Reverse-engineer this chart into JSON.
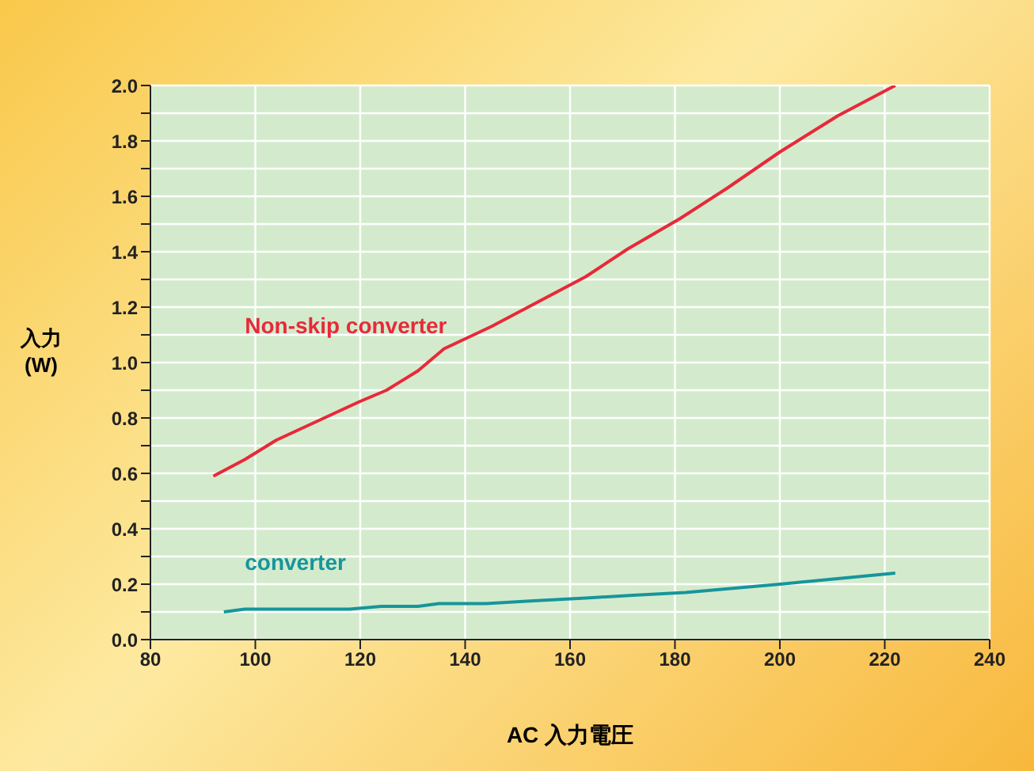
{
  "chart_data": {
    "type": "line",
    "xlabel": "AC 入力電圧",
    "ylabel": "入力\n(W)",
    "xlim": [
      80,
      240
    ],
    "xticks": [
      80,
      100,
      120,
      140,
      160,
      180,
      200,
      220,
      240
    ],
    "ylim": [
      0,
      2
    ],
    "yticks": [
      {
        "value": 0,
        "label": "0.0"
      },
      {
        "value": 0.1,
        "label": null
      },
      0.2,
      {
        "value": 0.3,
        "label": null
      },
      0.4,
      {
        "value": 0.5,
        "label": null
      },
      0.6,
      {
        "value": 0.7,
        "label": null
      },
      0.8,
      {
        "value": 0.9,
        "label": null
      },
      {
        "value": 1,
        "label": "1.0"
      },
      {
        "value": 1.1,
        "label": null
      },
      1.2,
      {
        "value": 1.3,
        "label": null
      },
      1.4,
      {
        "value": 1.5,
        "label": null
      },
      1.6,
      {
        "value": 1.7,
        "label": null
      },
      1.8,
      {
        "value": 1.9,
        "label": null
      },
      {
        "value": 2,
        "label": "2.0"
      }
    ],
    "grid": true,
    "series": [
      {
        "name": "Non-skip converter",
        "color": "#e8293a",
        "x": [
          92,
          98,
          104,
          112,
          120,
          125,
          131,
          136,
          145,
          154,
          163,
          171,
          181,
          190,
          200,
          211,
          222
        ],
        "values": [
          0.59,
          0.65,
          0.72,
          0.79,
          0.86,
          0.9,
          0.97,
          1.05,
          1.13,
          1.22,
          1.31,
          1.41,
          1.52,
          1.63,
          1.76,
          1.89,
          2.0
        ]
      },
      {
        "name": "converter",
        "color": "#16959c",
        "x": [
          94,
          98,
          118,
          124,
          131,
          135,
          144,
          153,
          163,
          172,
          182,
          200,
          211,
          222
        ],
        "values": [
          0.1,
          0.11,
          0.11,
          0.12,
          0.12,
          0.13,
          0.13,
          0.14,
          0.15,
          0.16,
          0.17,
          0.2,
          0.22,
          0.24
        ]
      }
    ]
  }
}
